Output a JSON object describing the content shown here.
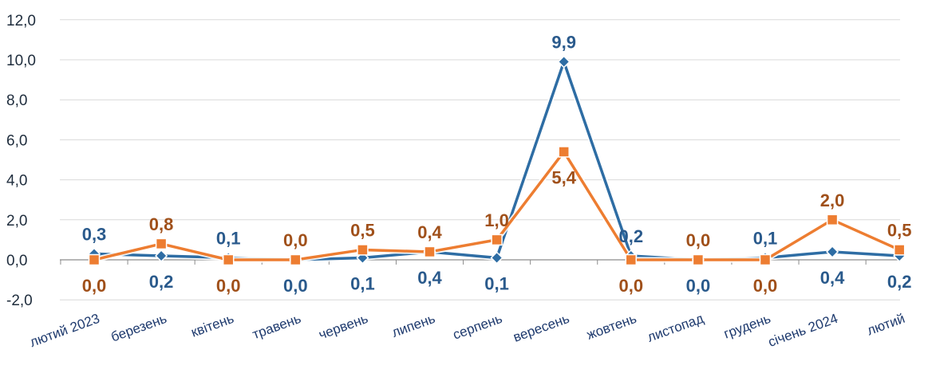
{
  "chart_data": {
    "type": "line",
    "categories": [
      "лютий 2023",
      "березень",
      "квітень",
      "травень",
      "червень",
      "липень",
      "серпень",
      "вересень",
      "жовтень",
      "листопад",
      "грудень",
      "січень 2024",
      "лютий"
    ],
    "series": [
      {
        "values": [
          0.3,
          0.2,
          0.1,
          0.0,
          0.1,
          0.4,
          0.1,
          9.9,
          0.2,
          0.0,
          0.1,
          0.4,
          0.2
        ],
        "labels": [
          "0,3",
          "0,2",
          "0,1",
          "0,0",
          "0,1",
          "0,4",
          "0,1",
          "9,9",
          "0,2",
          "0,0",
          "0,1",
          "0,4",
          "0,2"
        ],
        "color": "#2e6da4",
        "marker": "diamond"
      },
      {
        "values": [
          0.0,
          0.8,
          0.0,
          0.0,
          0.5,
          0.4,
          1.0,
          5.4,
          0.0,
          0.0,
          0.0,
          2.0,
          0.5
        ],
        "labels": [
          "0,0",
          "0,8",
          "0,0",
          "0,0",
          "0,5",
          "0,4",
          "1,0",
          "5,4",
          "0,0",
          "0,0",
          "0,0",
          "2,0",
          "0,5"
        ],
        "color": "#ed7d31",
        "marker": "square"
      }
    ],
    "yticks": [
      "-2,0",
      "0,0",
      "2,0",
      "4,0",
      "6,0",
      "8,0",
      "10,0",
      "12,0"
    ],
    "ylim": [
      -2,
      12
    ],
    "title": "",
    "xlabel": "",
    "ylabel": "",
    "grid": true,
    "label_colors": [
      "#2a5a8c",
      "#a0501a"
    ]
  }
}
